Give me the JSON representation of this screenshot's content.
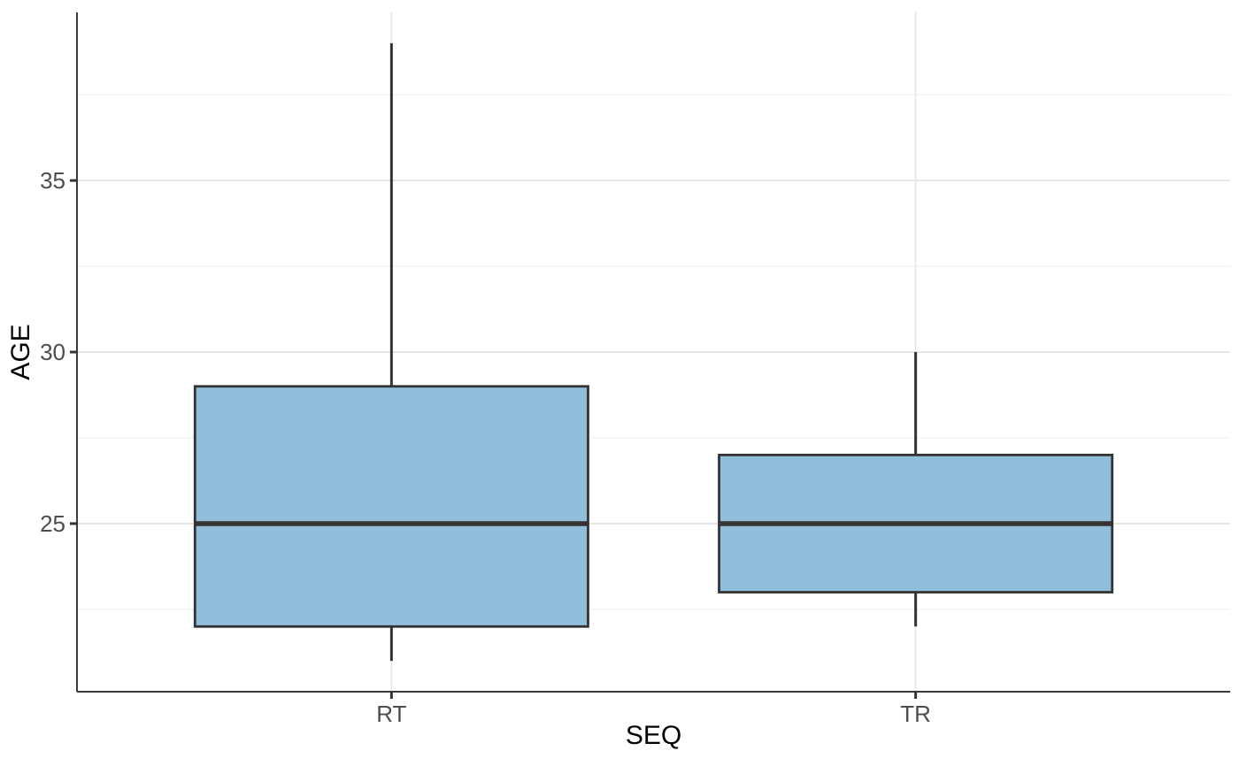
{
  "chart_data": {
    "type": "boxplot",
    "title": "",
    "xlabel": "SEQ",
    "ylabel": "AGE",
    "categories": [
      "RT",
      "TR"
    ],
    "series": [
      {
        "category": "RT",
        "min": 21,
        "q1": 22,
        "median": 25,
        "q3": 29,
        "max": 39
      },
      {
        "category": "TR",
        "min": 22,
        "q1": 23,
        "median": 25,
        "q3": 27,
        "max": 30
      }
    ],
    "ylim": [
      20.1,
      39.9
    ],
    "yticks_major": [
      25,
      30,
      35
    ],
    "yticks_minor": [
      22.5,
      27.5,
      32.5,
      37.5
    ],
    "grid": "horizontal major+minor light gray, vertical major at category centers",
    "legend": "none",
    "colors": {
      "box_fill": "#91bfdb",
      "box_stroke": "#333333",
      "median_line": "#333333",
      "whisker": "#333333",
      "grid_major": "#e7e7e7",
      "grid_minor": "#f1f1f1",
      "axis_line": "#3b3b3b",
      "tick_mark": "#333333",
      "tick_label": "#4d4d4d",
      "axis_title": "#000000",
      "background": "#ffffff"
    }
  }
}
